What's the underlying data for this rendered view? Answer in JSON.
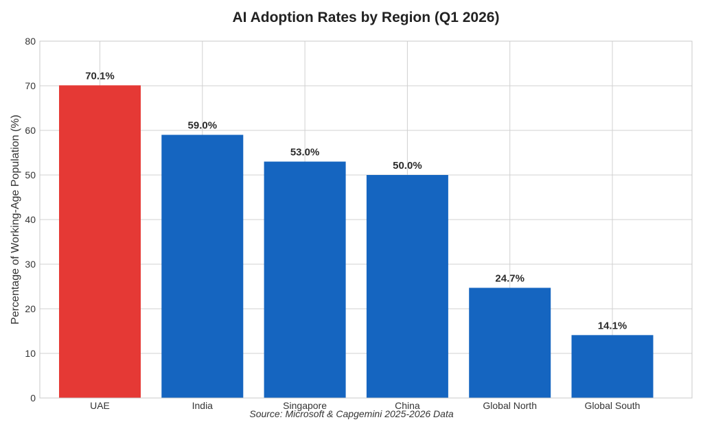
{
  "chart_data": {
    "type": "bar",
    "title": "AI Adoption Rates by Region (Q1 2026)",
    "xlabel": "",
    "ylabel": "Percentage of Working-Age Population (%)",
    "categories": [
      "UAE",
      "India",
      "Singapore",
      "China",
      "Global North",
      "Global South"
    ],
    "values": [
      70.1,
      59.0,
      53.0,
      50.0,
      24.7,
      14.1
    ],
    "data_labels": [
      "70.1%",
      "59.0%",
      "53.0%",
      "50.0%",
      "24.7%",
      "14.1%"
    ],
    "bar_colors": [
      "#e53935",
      "#1565c0",
      "#1565c0",
      "#1565c0",
      "#1565c0",
      "#1565c0"
    ],
    "ylim": [
      0,
      80
    ],
    "yticks": [
      0,
      10,
      20,
      30,
      40,
      50,
      60,
      70,
      80
    ],
    "grid": true,
    "legend": "none",
    "source": "Source: Microsoft & Capgemini 2025-2026 Data"
  }
}
